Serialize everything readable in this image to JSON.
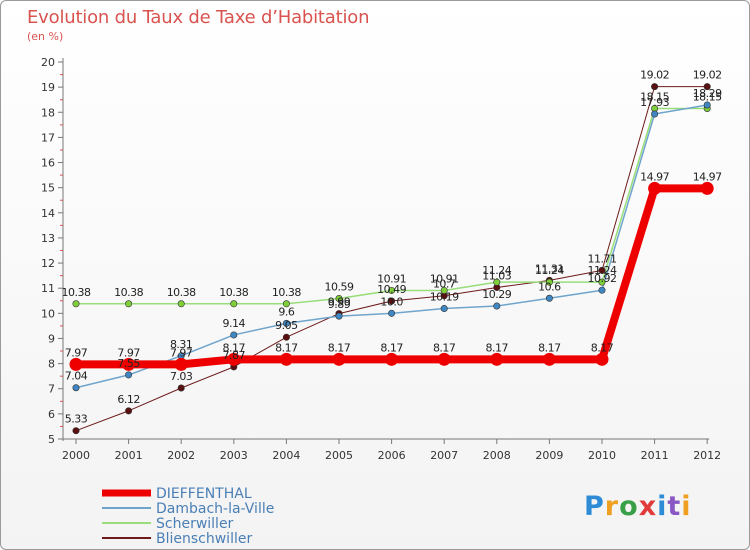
{
  "header": {
    "title": "Evolution du Taux de Taxe d’Habitation",
    "unit": "(en %)"
  },
  "brand": {
    "letters": [
      {
        "ch": "P",
        "color": "#2e8bd6"
      },
      {
        "ch": "r",
        "color": "#f0a020"
      },
      {
        "ch": "o",
        "color": "#3aa048"
      },
      {
        "ch": "x",
        "color": "#e23b3b"
      },
      {
        "ch": "i",
        "color": "#2e8bd6"
      },
      {
        "ch": "t",
        "color": "#8a58c4"
      },
      {
        "ch": "i",
        "color": "#f0a020"
      }
    ]
  },
  "chart_data": {
    "type": "line",
    "title": "Evolution du Taux de Taxe d’Habitation",
    "ylabel": "(en %)",
    "xlabel": "",
    "x": [
      "2000",
      "2001",
      "2002",
      "2003",
      "2004",
      "2005",
      "2006",
      "2007",
      "2008",
      "2009",
      "2010",
      "2011",
      "2012"
    ],
    "ylim": [
      5,
      20
    ],
    "yticks": [
      5,
      6,
      7,
      8,
      9,
      10,
      11,
      12,
      13,
      14,
      15,
      16,
      17,
      18,
      19,
      20
    ],
    "grid": false,
    "legend": "bottom-left",
    "series": [
      {
        "name": "Blienschwiller",
        "color": "#6e1a1a",
        "dot": "#5a1010",
        "width": 1,
        "values": [
          5.33,
          6.12,
          7.03,
          7.87,
          9.05,
          9.99,
          10.49,
          10.7,
          11.03,
          11.31,
          11.71,
          19.02,
          19.02
        ],
        "labels": [
          "5.33",
          "6.12",
          "7.03",
          "7.87",
          "9.05",
          "9.99",
          "10.49",
          "10.7",
          "11.03",
          "11.31",
          "11.71",
          "19.02",
          "19.02"
        ]
      },
      {
        "name": "Scherwiller",
        "color": "#99dd7a",
        "dot": "#7fcf3a",
        "width": 1.5,
        "values": [
          10.38,
          10.38,
          10.38,
          10.38,
          10.38,
          10.59,
          10.91,
          10.91,
          11.24,
          11.24,
          11.24,
          18.15,
          18.15
        ],
        "labels": [
          "10.38",
          "10.38",
          "10.38",
          "10.38",
          "10.38",
          "10.59",
          "10.91",
          "10.91",
          "11.24",
          "11.24",
          "11.24",
          "18.15",
          "18.15"
        ]
      },
      {
        "name": "Dambach-la-Ville",
        "color": "#6fa4cc",
        "dot": "#3f86c2",
        "width": 1.5,
        "values": [
          7.04,
          7.55,
          8.31,
          9.14,
          9.6,
          9.89,
          10.0,
          10.19,
          10.29,
          10.6,
          10.92,
          17.93,
          18.29
        ],
        "labels": [
          "7.04",
          "7.55",
          "8.31",
          "9.14",
          "9.6",
          "9.89",
          "10.0",
          "10.19",
          "10.29",
          "10.6",
          "10.92",
          "17.93",
          "18.29"
        ]
      },
      {
        "name": "DIEFFENTHAL",
        "color": "#ee0000",
        "dot": "#ee0000",
        "width": 8,
        "values": [
          7.97,
          7.97,
          7.97,
          8.17,
          8.17,
          8.17,
          8.17,
          8.17,
          8.17,
          8.17,
          8.17,
          14.97,
          14.97
        ],
        "labels": [
          "7.97",
          "7.97",
          "7.97",
          "8.17",
          "8.17",
          "8.17",
          "8.17",
          "8.17",
          "8.17",
          "8.17",
          "8.17",
          "14.97",
          "14.97"
        ]
      }
    ],
    "legend_order": [
      "DIEFFENTHAL",
      "Dambach-la-Ville",
      "Scherwiller",
      "Blienschwiller"
    ]
  }
}
